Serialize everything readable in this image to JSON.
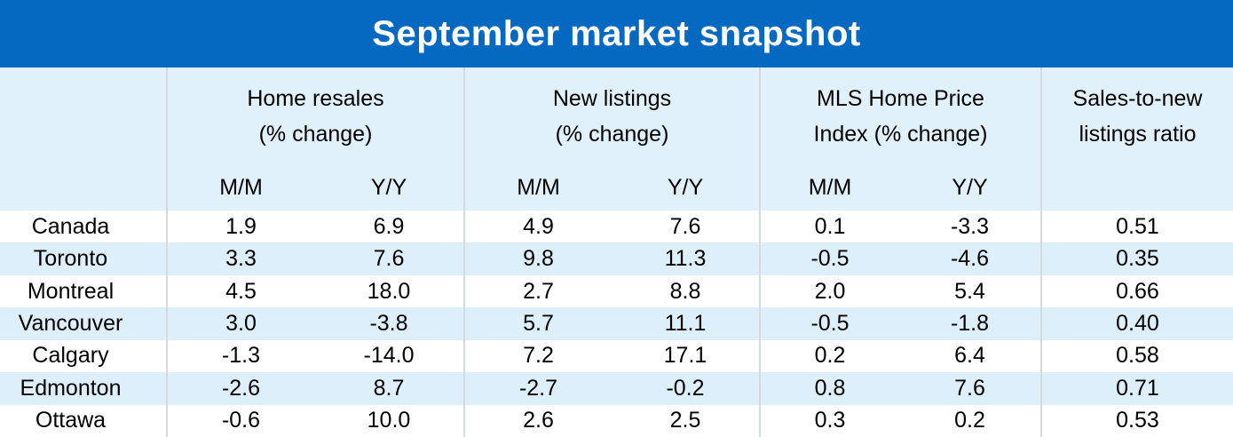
{
  "title": "September market snapshot",
  "colors": {
    "title_bar": "#0568C1",
    "title_text": "#FFFFFF",
    "header_bg": "#E0F1FC",
    "row_bg": "#FFFFFF",
    "row_alt_bg": "#DDEFFB",
    "divider": "#D4DADF",
    "text": "#000000"
  },
  "table": {
    "groups": [
      {
        "line1": "Home resales",
        "line2": "(% change)"
      },
      {
        "line1": "New listings",
        "line2": "(% change)"
      },
      {
        "line1": "MLS Home Price",
        "line2": "Index (% change)"
      },
      {
        "line1": "Sales-to-new",
        "line2": "listings ratio"
      }
    ],
    "subheaders": [
      "M/M",
      "Y/Y",
      "M/M",
      "Y/Y",
      "M/M",
      "Y/Y"
    ],
    "rows": [
      {
        "city": "Canada",
        "values": [
          "1.9",
          "6.9",
          "4.9",
          "7.6",
          "0.1",
          "-3.3",
          "0.51"
        ]
      },
      {
        "city": "Toronto",
        "values": [
          "3.3",
          "7.6",
          "9.8",
          "11.3",
          "-0.5",
          "-4.6",
          "0.35"
        ]
      },
      {
        "city": "Montreal",
        "values": [
          "4.5",
          "18.0",
          "2.7",
          "8.8",
          "2.0",
          "5.4",
          "0.66"
        ]
      },
      {
        "city": "Vancouver",
        "values": [
          "3.0",
          "-3.8",
          "5.7",
          "11.1",
          "-0.5",
          "-1.8",
          "0.40"
        ]
      },
      {
        "city": "Calgary",
        "values": [
          "-1.3",
          "-14.0",
          "7.2",
          "17.1",
          "0.2",
          "6.4",
          "0.58"
        ]
      },
      {
        "city": "Edmonton",
        "values": [
          "-2.6",
          "8.7",
          "-2.7",
          "-0.2",
          "0.8",
          "7.6",
          "0.71"
        ]
      },
      {
        "city": "Ottawa",
        "values": [
          "-0.6",
          "10.0",
          "2.6",
          "2.5",
          "0.3",
          "0.2",
          "0.53"
        ]
      }
    ]
  },
  "chart_data": {
    "type": "table",
    "title": "September market snapshot",
    "column_groups": [
      "Home resales (% change)",
      "New listings (% change)",
      "MLS Home Price Index (% change)",
      "Sales-to-new listings ratio"
    ],
    "columns": [
      "City",
      "Home resales M/M",
      "Home resales Y/Y",
      "New listings M/M",
      "New listings Y/Y",
      "MLS Home Price Index M/M",
      "MLS Home Price Index Y/Y",
      "Sales-to-new listings ratio"
    ],
    "rows": [
      [
        "Canada",
        1.9,
        6.9,
        4.9,
        7.6,
        0.1,
        -3.3,
        0.51
      ],
      [
        "Toronto",
        3.3,
        7.6,
        9.8,
        11.3,
        -0.5,
        -4.6,
        0.35
      ],
      [
        "Montreal",
        4.5,
        18.0,
        2.7,
        8.8,
        2.0,
        5.4,
        0.66
      ],
      [
        "Vancouver",
        3.0,
        -3.8,
        5.7,
        11.1,
        -0.5,
        -1.8,
        0.4
      ],
      [
        "Calgary",
        -1.3,
        -14.0,
        7.2,
        17.1,
        0.2,
        6.4,
        0.58
      ],
      [
        "Edmonton",
        -2.6,
        8.7,
        -2.7,
        -0.2,
        0.8,
        7.6,
        0.71
      ],
      [
        "Ottawa",
        -0.6,
        10.0,
        2.6,
        2.5,
        0.3,
        0.2,
        0.53
      ]
    ]
  }
}
